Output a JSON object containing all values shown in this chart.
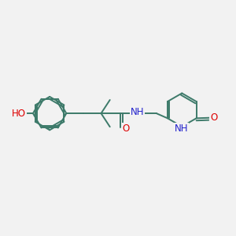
{
  "background_color": "#f2f2f2",
  "bond_color": "#3d7a6a",
  "atom_colors": {
    "O": "#dd0000",
    "N": "#2222cc",
    "C": "#3d7a6a"
  },
  "line_width": 1.4,
  "font_size": 8.5,
  "fig_w": 3.0,
  "fig_h": 3.0,
  "dpi": 100,
  "xlim": [
    0,
    10
  ],
  "ylim": [
    0,
    10
  ]
}
